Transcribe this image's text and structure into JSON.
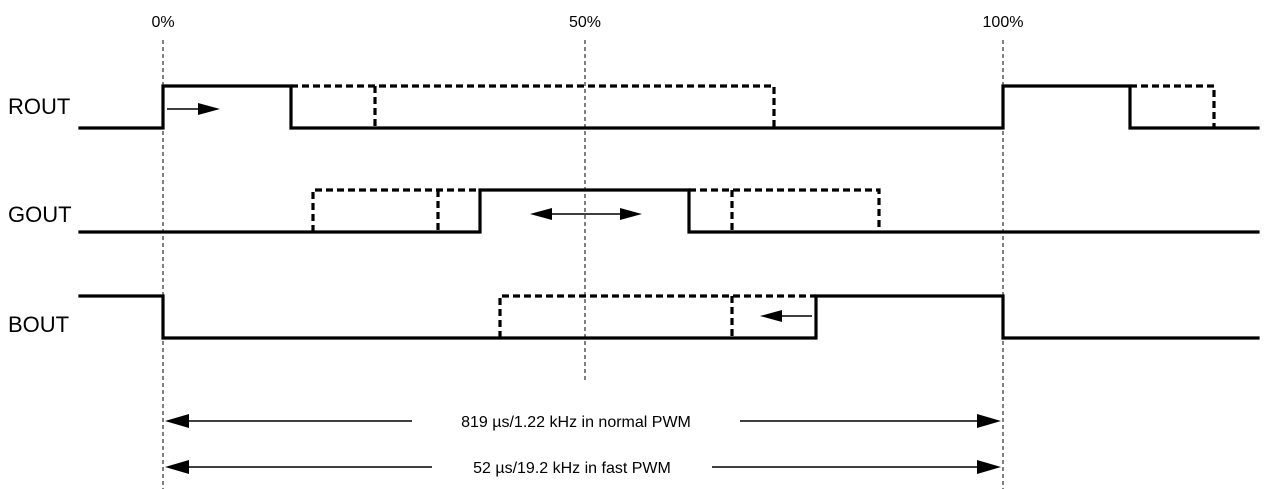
{
  "markers": {
    "start": "0%",
    "mid": "50%",
    "end": "100%"
  },
  "channels": {
    "red": "ROUT",
    "green": "GOUT",
    "blue": "BOUT"
  },
  "periods": {
    "normal": "819 µs/1.22 kHz in normal PWM",
    "fast": "52 µs/19.2 kHz in fast PWM"
  }
}
